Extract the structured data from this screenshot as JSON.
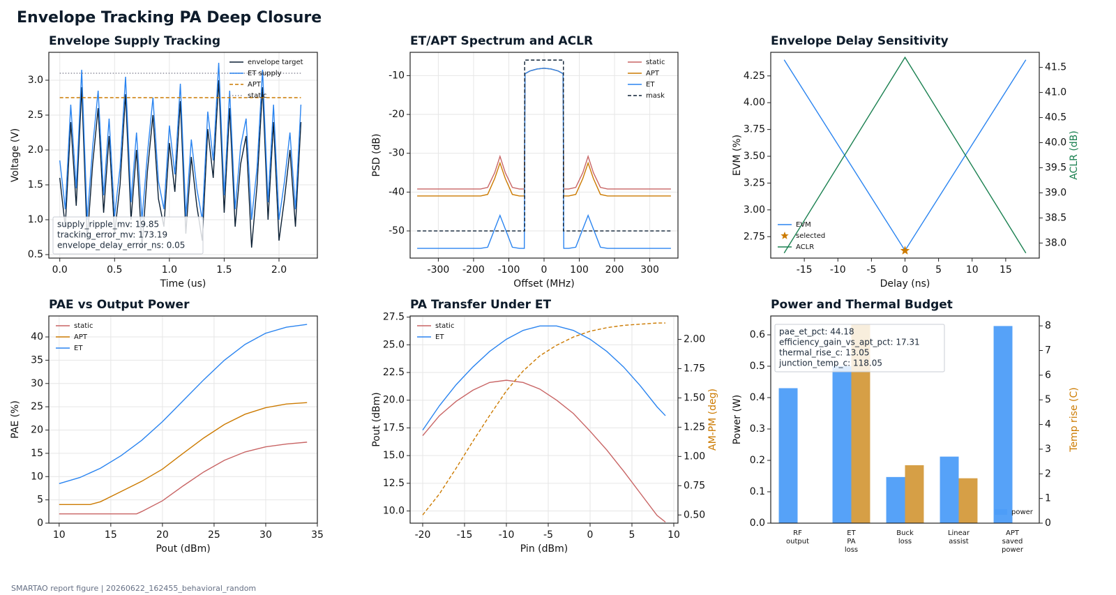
{
  "title": "Envelope Tracking PA Deep Closure",
  "footer": "SMARTAO report figure | 20260622_162455_behavioral_random",
  "chart_data": [
    {
      "type": "line",
      "title": "Envelope Supply Tracking",
      "xlabel": "Time (us)",
      "ylabel": "Voltage (V)",
      "xlim": [
        -0.1,
        2.35
      ],
      "ylim": [
        0.45,
        3.4
      ],
      "xticks": [
        {
          "value": 0,
          "label": "0.0"
        },
        0.5,
        {
          "value": 1,
          "label": "1.0"
        },
        1.5,
        {
          "value": 2,
          "label": "2.0"
        }
      ],
      "yticks": [
        0.5,
        {
          "value": 1,
          "label": "1.0"
        },
        1.5,
        {
          "value": 2,
          "label": "2.0"
        },
        2.5,
        {
          "value": 3,
          "label": "3.0"
        }
      ],
      "grid": true,
      "legend": "upper right",
      "annotation_corner": "lower left",
      "annotations": [
        "supply_ripple_mv: 19.85",
        "tracking_error_mv: 173.19",
        "envelope_delay_error_ns: 0.05"
      ],
      "series": [
        {
          "name": "envelope target",
          "color": "#0b1f33",
          "x": [
            0,
            0.05,
            0.1,
            0.15,
            0.2,
            0.25,
            0.3,
            0.35,
            0.4,
            0.45,
            0.5,
            0.55,
            0.6,
            0.65,
            0.7,
            0.75,
            0.8,
            0.85,
            0.9,
            0.95,
            1,
            1.05,
            1.1,
            1.15,
            1.2,
            1.25,
            1.3,
            1.35,
            1.4,
            1.45,
            1.5,
            1.55,
            1.6,
            1.65,
            1.7,
            1.75,
            1.8,
            1.85,
            1.9,
            1.95,
            2,
            2.05,
            2.1,
            2.15,
            2.2
          ],
          "values": [
            1.6,
            0.9,
            2.4,
            1.2,
            2.9,
            0.7,
            1.8,
            2.6,
            1.1,
            2.2,
            0.8,
            1.5,
            2.8,
            1.0,
            2.0,
            0.6,
            1.7,
            2.5,
            1.3,
            0.9,
            2.1,
            1.4,
            2.7,
            0.8,
            1.9,
            1.2,
            0.7,
            2.3,
            1.6,
            3.0,
            1.1,
            2.6,
            0.9,
            1.8,
            2.2,
            0.6,
            1.5,
            2.9,
            1.0,
            2.4,
            0.7,
            1.3,
            2.0,
            0.9,
            2.4
          ]
        },
        {
          "name": "ET supply",
          "color": "#2a84f0",
          "x": [
            0,
            0.05,
            0.1,
            0.15,
            0.2,
            0.25,
            0.3,
            0.35,
            0.4,
            0.45,
            0.5,
            0.55,
            0.6,
            0.65,
            0.7,
            0.75,
            0.8,
            0.85,
            0.9,
            0.95,
            1,
            1.05,
            1.1,
            1.15,
            1.2,
            1.25,
            1.3,
            1.35,
            1.4,
            1.45,
            1.5,
            1.55,
            1.6,
            1.65,
            1.7,
            1.75,
            1.8,
            1.85,
            1.9,
            1.95,
            2,
            2.05,
            2.1,
            2.15,
            2.2
          ],
          "values": [
            1.85,
            1.15,
            2.65,
            1.45,
            3.15,
            1.0,
            2.05,
            2.85,
            1.35,
            2.45,
            1.05,
            1.75,
            3.05,
            1.25,
            2.25,
            1.0,
            1.95,
            2.75,
            1.55,
            1.15,
            2.35,
            1.65,
            2.95,
            1.05,
            2.15,
            1.45,
            1.0,
            2.55,
            1.85,
            3.25,
            1.35,
            2.85,
            1.15,
            2.05,
            2.45,
            1.0,
            1.75,
            3.15,
            1.25,
            2.65,
            1.0,
            1.55,
            2.25,
            1.15,
            2.65
          ]
        },
        {
          "name": "APT",
          "color": "#cc7a00",
          "dash": "dashed",
          "x": [
            0,
            2.2
          ],
          "values": [
            2.75,
            2.75
          ]
        },
        {
          "name": "static",
          "color": "#8a8a9a",
          "dash": "dotted",
          "x": [
            0,
            2.2
          ],
          "values": [
            3.1,
            3.1
          ]
        }
      ]
    },
    {
      "type": "line",
      "title": "ET/APT Spectrum and ACLR",
      "xlabel": "Offset (MHz)",
      "ylabel": "PSD (dB)",
      "xlim": [
        -380,
        380
      ],
      "ylim": [
        -57,
        -4
      ],
      "xticks": [
        -300,
        -200,
        -100,
        0,
        100,
        200,
        300
      ],
      "yticks": [
        -50,
        -40,
        -30,
        -20,
        -10
      ],
      "grid": true,
      "legend": "upper right",
      "series": [
        {
          "name": "static",
          "color": "#c86464",
          "x": [
            -360,
            -320,
            -280,
            -240,
            -200,
            -180,
            -160,
            -140,
            -125,
            -110,
            -90,
            -70,
            -56,
            -54,
            -40,
            -20,
            0,
            20,
            40,
            54,
            56,
            70,
            90,
            110,
            125,
            140,
            160,
            180,
            200,
            240,
            280,
            320,
            360
          ],
          "values": [
            -39.2,
            -39.2,
            -39.2,
            -39.2,
            -39.2,
            -39.2,
            -38.8,
            -35,
            -30.8,
            -35,
            -38.8,
            -39.2,
            -39.2,
            -9.5,
            -8.8,
            -8.3,
            -8.1,
            -8.3,
            -8.8,
            -9.5,
            -39.2,
            -39.2,
            -38.8,
            -35,
            -30.8,
            -35,
            -38.8,
            -39.2,
            -39.2,
            -39.2,
            -39.2,
            -39.2,
            -39.2
          ]
        },
        {
          "name": "APT",
          "color": "#cc7a00",
          "x": [
            -360,
            -320,
            -280,
            -240,
            -200,
            -180,
            -160,
            -140,
            -125,
            -110,
            -90,
            -70,
            -56,
            -54,
            -40,
            -20,
            0,
            20,
            40,
            54,
            56,
            70,
            90,
            110,
            125,
            140,
            160,
            180,
            200,
            240,
            280,
            320,
            360
          ],
          "values": [
            -41,
            -41,
            -41,
            -41,
            -41,
            -41,
            -40.6,
            -36.5,
            -32.5,
            -36.5,
            -40.6,
            -41,
            -41,
            -9.5,
            -8.8,
            -8.3,
            -8.1,
            -8.3,
            -8.8,
            -9.5,
            -41,
            -41,
            -40.6,
            -36.5,
            -32.5,
            -36.5,
            -40.6,
            -41,
            -41,
            -41,
            -41,
            -41,
            -41
          ]
        },
        {
          "name": "ET",
          "color": "#2a84f0",
          "x": [
            -360,
            -320,
            -280,
            -240,
            -200,
            -180,
            -160,
            -140,
            -125,
            -110,
            -90,
            -70,
            -56,
            -54,
            -40,
            -20,
            0,
            20,
            40,
            54,
            56,
            70,
            90,
            110,
            125,
            140,
            160,
            180,
            200,
            240,
            280,
            320,
            360
          ],
          "values": [
            -54.5,
            -54.5,
            -54.5,
            -54.5,
            -54.5,
            -54.5,
            -54.2,
            -49.5,
            -46,
            -49.5,
            -54.2,
            -54.5,
            -54.5,
            -9.5,
            -8.8,
            -8.3,
            -8.1,
            -8.3,
            -8.8,
            -9.5,
            -54.5,
            -54.5,
            -54.2,
            -49.5,
            -46,
            -49.5,
            -54.2,
            -54.5,
            -54.5,
            -54.5,
            -54.5,
            -54.5,
            -54.5
          ]
        },
        {
          "name": "mask",
          "color": "#0b1f33",
          "dash": "dashed",
          "x": [
            -360,
            -55,
            -55,
            55,
            55,
            360
          ],
          "values": [
            -50,
            -50,
            -6,
            -6,
            -50,
            -50
          ]
        }
      ]
    },
    {
      "type": "line",
      "title": "Envelope Delay Sensitivity",
      "xlabel": "Delay (ns)",
      "ylabel": "EVM (%)",
      "y2label": "ACLR (dB)",
      "y2color": "#1a8050",
      "xlim": [
        -20,
        20
      ],
      "ylim": [
        2.55,
        4.47
      ],
      "y2lim": [
        37.7,
        41.8
      ],
      "xticks": [
        -15,
        -10,
        -5,
        0,
        5,
        10,
        15
      ],
      "yticks": [
        2.75,
        {
          "value": 3,
          "label": "3.00"
        },
        3.25,
        {
          "value": 3.5,
          "label": "3.50"
        },
        3.75,
        {
          "value": 4,
          "label": "4.00"
        },
        4.25
      ],
      "y2ticks": [
        {
          "value": 38,
          "label": "38.0"
        },
        38.5,
        {
          "value": 39,
          "label": "39.0"
        },
        39.5,
        {
          "value": 40,
          "label": "40.0"
        },
        40.5,
        {
          "value": 41,
          "label": "41.0"
        },
        41.5
      ],
      "grid": false,
      "legend": "lower left",
      "series": [
        {
          "name": "EVM",
          "color": "#2a84f0",
          "x": [
            -18,
            0,
            18
          ],
          "values": [
            4.4,
            2.62,
            4.4
          ]
        },
        {
          "name": "selected",
          "color": "#cc7a00",
          "marker": "star",
          "x": [
            0
          ],
          "values": [
            2.62
          ]
        },
        {
          "name": "ACLR",
          "color": "#1a8050",
          "axis": "y2",
          "x": [
            -18,
            0,
            18
          ],
          "values": [
            37.8,
            41.7,
            37.8
          ]
        }
      ]
    },
    {
      "type": "line",
      "title": "PAE vs Output Power",
      "xlabel": "Pout (dBm)",
      "ylabel": "PAE (%)",
      "xlim": [
        9,
        35
      ],
      "ylim": [
        0,
        44.5
      ],
      "xticks": [
        10,
        15,
        20,
        25,
        30,
        35
      ],
      "yticks": [
        0,
        5,
        10,
        15,
        20,
        25,
        30,
        35,
        40
      ],
      "grid": true,
      "legend": "upper left",
      "series": [
        {
          "name": "static",
          "color": "#c86464",
          "x": [
            10,
            12,
            14,
            16,
            17.5,
            18,
            20,
            22,
            24,
            26,
            28,
            30,
            32,
            34
          ],
          "values": [
            2,
            2,
            2,
            2,
            2,
            2.5,
            4.8,
            8,
            11,
            13.5,
            15.3,
            16.4,
            17,
            17.4
          ]
        },
        {
          "name": "APT",
          "color": "#cc7a00",
          "x": [
            10,
            12,
            13,
            14,
            16,
            18,
            20,
            22,
            24,
            26,
            28,
            30,
            32,
            34
          ],
          "values": [
            4,
            4,
            4,
            4.6,
            6.8,
            9,
            11.6,
            15,
            18.3,
            21.2,
            23.4,
            24.8,
            25.6,
            25.9
          ]
        },
        {
          "name": "ET",
          "color": "#2a84f0",
          "x": [
            10,
            12,
            14,
            16,
            18,
            20,
            22,
            24,
            26,
            28,
            30,
            32,
            34
          ],
          "values": [
            8.5,
            9.8,
            11.8,
            14.5,
            17.8,
            21.8,
            26.3,
            30.8,
            35,
            38.4,
            40.8,
            42.1,
            42.7
          ]
        }
      ]
    },
    {
      "type": "line",
      "title": "PA Transfer Under ET",
      "xlabel": "Pin (dBm)",
      "ylabel": "Pout (dBm)",
      "y2label": "AM-PM (deg)",
      "y2color": "#cc7a00",
      "xlim": [
        -21.5,
        10.5
      ],
      "ylim": [
        8.9,
        27.6
      ],
      "y2lim": [
        0.43,
        2.2
      ],
      "xticks": [
        -20,
        -15,
        -10,
        -5,
        0,
        5,
        10
      ],
      "yticks": [
        {
          "value": 10,
          "label": "10.0"
        },
        12.5,
        {
          "value": 15,
          "label": "15.0"
        },
        17.5,
        {
          "value": 20,
          "label": "20.0"
        },
        22.5,
        {
          "value": 25,
          "label": "25.0"
        },
        27.5
      ],
      "y2ticks": [
        {
          "value": 0.5,
          "label": "0.50"
        },
        0.75,
        {
          "value": 1,
          "label": "1.00"
        },
        1.25,
        {
          "value": 1.5,
          "label": "1.50"
        },
        1.75,
        {
          "value": 2,
          "label": "2.00"
        }
      ],
      "grid": true,
      "legend": "upper left",
      "series": [
        {
          "name": "static",
          "color": "#c86464",
          "x": [
            -20,
            -18,
            -16,
            -14,
            -12,
            -10,
            -8,
            -6,
            -4,
            -2,
            0,
            2,
            4,
            6,
            8,
            9
          ],
          "values": [
            16.8,
            18.6,
            19.9,
            20.9,
            21.6,
            21.8,
            21.6,
            21,
            20,
            18.8,
            17.2,
            15.5,
            13.6,
            11.6,
            9.6,
            9.0
          ]
        },
        {
          "name": "ET",
          "color": "#2a84f0",
          "x": [
            -20,
            -18,
            -16,
            -14,
            -12,
            -10,
            -8,
            -6,
            -4,
            -2,
            0,
            2,
            4,
            6,
            8,
            9
          ],
          "values": [
            17.3,
            19.5,
            21.4,
            23,
            24.4,
            25.5,
            26.3,
            26.7,
            26.7,
            26.3,
            25.5,
            24.4,
            23,
            21.3,
            19.4,
            18.6
          ]
        },
        {
          "color": "#cc7a00",
          "dash": "dashed",
          "axis": "y2",
          "x": [
            -20,
            -18,
            -16,
            -14,
            -12,
            -10,
            -8,
            -6,
            -4,
            -2,
            0,
            2,
            4,
            6,
            8,
            9
          ],
          "values": [
            0.5,
            0.68,
            0.9,
            1.13,
            1.35,
            1.56,
            1.73,
            1.86,
            1.95,
            2.02,
            2.07,
            2.1,
            2.12,
            2.13,
            2.14,
            2.14
          ]
        }
      ]
    },
    {
      "type": "bar",
      "title": "Power and Thermal Budget",
      "ylabel": "Power (W)",
      "y2label": "Temp rise (C)",
      "y2color": "#cc7a00",
      "categories": [
        "RF\noutput",
        "ET\nPA\nloss",
        "Buck\nloss",
        "Linear\nassist",
        "APT\nsaved\npower"
      ],
      "ylim": [
        0,
        0.66
      ],
      "y2lim": [
        0,
        8.4
      ],
      "yticks": [
        {
          "value": 0,
          "label": "0.0"
        },
        0.1,
        0.2,
        0.3,
        0.4,
        0.5,
        0.6
      ],
      "y2ticks": [
        0,
        1,
        2,
        3,
        4,
        5,
        6,
        7,
        8
      ],
      "grid": false,
      "legend": "lower right",
      "annotation_corner": "upper left",
      "annotations": [
        "pae_et_pct: 44.18",
        "efficiency_gain_vs_apt_pct: 17.31",
        "thermal_rise_c: 13.05",
        "junction_temp_c: 118.05"
      ],
      "series": [
        {
          "name": "power",
          "color": "#4d9df8",
          "values": [
            0.43,
            0.5,
            0.147,
            0.212,
            0.628
          ]
        },
        {
          "color": "#d49a3c",
          "axis": "y2",
          "values": [
            null,
            8.05,
            2.35,
            1.82,
            null
          ]
        }
      ]
    }
  ]
}
